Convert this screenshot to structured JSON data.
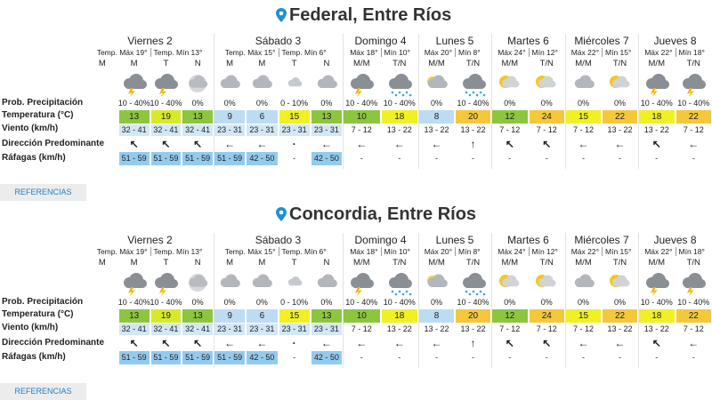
{
  "locations": [
    {
      "title": "Federal, Entre Ríos",
      "button": "REFERENCIAS",
      "row_labels": [
        "Prob. Precipitación",
        "Temperatura (°C)",
        "Viento (km/h)",
        "Dirección Predominante",
        "Ráfagas (km/h)"
      ],
      "days": [
        {
          "name": "Viernes 2",
          "max": "Temp. Máx 19°",
          "min": "Temp. Mín 13°",
          "periods": [
            "M",
            "M",
            "T",
            "N"
          ],
          "precipitation": [
            "10 - 40%",
            "10 - 40%",
            "0%"
          ],
          "temperature": [
            {
              "value": 13,
              "color": "#8cc63f"
            },
            {
              "value": 19,
              "color": "#d7ea2a"
            },
            {
              "value": 13,
              "color": "#8cc63f"
            }
          ],
          "wind": [
            "32 - 41",
            "32 - 41",
            "32 - 41"
          ],
          "direction": [
            "↖",
            "↖",
            "↖"
          ],
          "gusts": [
            "51 - 59",
            "51 - 59",
            "51 - 59"
          ]
        },
        {
          "name": "Sábado 3",
          "max": "Temp. Máx 15°",
          "min": "Temp. Mín 6°",
          "periods": [
            "M",
            "M",
            "T",
            "N"
          ],
          "precipitation": [
            "0%",
            "0%",
            "0 - 10%",
            "0%"
          ],
          "temperature": [
            {
              "value": 9,
              "color": "#bcdcf3"
            },
            {
              "value": 6,
              "color": "#bcdcf3"
            },
            {
              "value": 15,
              "color": "#f0f025"
            },
            {
              "value": 13,
              "color": "#8cc63f"
            }
          ],
          "wind": [
            "23 - 31",
            "23 - 31",
            "23 - 31",
            "23 - 31"
          ],
          "direction": [
            "←",
            "←",
            "·",
            "←"
          ],
          "gusts": [
            "51 - 59",
            "42 - 50",
            "-",
            "42 - 50"
          ]
        },
        {
          "name": "Domingo 4",
          "max": "Máx 18°",
          "min": "Mín 10°",
          "periods": [
            "M/M",
            "T/N"
          ],
          "precipitation": [
            "10 - 40%",
            "10 - 40%"
          ],
          "temperature": [
            {
              "value": 10,
              "color": "#8cc63f"
            },
            {
              "value": 18,
              "color": "#f0f025"
            }
          ],
          "wind": [
            "7 - 12",
            "13 - 22"
          ],
          "direction": [
            "←",
            "←"
          ],
          "gusts": [
            "-",
            "-"
          ]
        },
        {
          "name": "Lunes 5",
          "max": "Máx 20°",
          "min": "Mín 8°",
          "periods": [
            "M/M",
            "T/N"
          ],
          "precipitation": [
            "0%",
            "10 - 40%"
          ],
          "temperature": [
            {
              "value": 8,
              "color": "#bcdcf3"
            },
            {
              "value": 20,
              "color": "#f5c83c"
            }
          ],
          "wind": [
            "13 - 22",
            "13 - 22"
          ],
          "direction": [
            "←",
            "↑"
          ],
          "gusts": [
            "-",
            "-"
          ]
        },
        {
          "name": "Martes 6",
          "max": "Máx 24°",
          "min": "Mín 12°",
          "periods": [
            "M/M",
            "T/N"
          ],
          "precipitation": [
            "0%",
            "0%"
          ],
          "temperature": [
            {
              "value": 12,
              "color": "#8cc63f"
            },
            {
              "value": 24,
              "color": "#f5c83c"
            }
          ],
          "wind": [
            "7 - 12",
            "7 - 12"
          ],
          "direction": [
            "↖",
            "↖"
          ],
          "gusts": [
            "-",
            "-"
          ]
        },
        {
          "name": "Miércoles 7",
          "max": "Máx 22°",
          "min": "Mín 15°",
          "periods": [
            "M/M",
            "T/N"
          ],
          "precipitation": [
            "0%",
            "0%"
          ],
          "temperature": [
            {
              "value": 15,
              "color": "#f0f025"
            },
            {
              "value": 22,
              "color": "#f5c83c"
            }
          ],
          "wind": [
            "7 - 12",
            "13 - 22"
          ],
          "direction": [
            "←",
            "←"
          ],
          "gusts": [
            "-",
            "-"
          ]
        },
        {
          "name": "Jueves 8",
          "max": "Máx 22°",
          "min": "Mín 18°",
          "periods": [
            "M/M",
            "T/N"
          ],
          "precipitation": [
            "10 - 40%",
            "10 - 40%"
          ],
          "temperature": [
            {
              "value": 18,
              "color": "#f0f025"
            },
            {
              "value": 22,
              "color": "#f5c83c"
            }
          ],
          "wind": [
            "13 - 22",
            "7 - 12"
          ],
          "direction": [
            "↖",
            "←"
          ],
          "gusts": [
            "-",
            "-"
          ]
        }
      ]
    },
    {
      "title": "Concordia, Entre Ríos",
      "button": "REFERENCIAS",
      "row_labels": [
        "Prob. Precipitación",
        "Temperatura (°C)",
        "Viento (km/h)",
        "Dirección Predominante",
        "Ráfagas (km/h)"
      ],
      "days": [
        {
          "name": "Viernes 2",
          "max": "Temp. Máx 19°",
          "min": "Temp. Mín 13°",
          "periods": [
            "M",
            "M",
            "T",
            "N"
          ],
          "precipitation": [
            "10 - 40%",
            "10 - 40%",
            "0%"
          ],
          "temperature": [
            {
              "value": 13,
              "color": "#8cc63f"
            },
            {
              "value": 19,
              "color": "#d7ea2a"
            },
            {
              "value": 13,
              "color": "#8cc63f"
            }
          ],
          "wind": [
            "32 - 41",
            "32 - 41",
            "32 - 41"
          ],
          "direction": [
            "↖",
            "↖",
            "↖"
          ],
          "gusts": [
            "51 - 59",
            "51 - 59",
            "51 - 59"
          ]
        },
        {
          "name": "Sábado 3",
          "max": "Temp. Máx 15°",
          "min": "Temp. Mín 6°",
          "periods": [
            "M",
            "M",
            "T",
            "N"
          ],
          "precipitation": [
            "0%",
            "0%",
            "0 - 10%",
            "0%"
          ],
          "temperature": [
            {
              "value": 9,
              "color": "#bcdcf3"
            },
            {
              "value": 6,
              "color": "#bcdcf3"
            },
            {
              "value": 15,
              "color": "#f0f025"
            },
            {
              "value": 13,
              "color": "#8cc63f"
            }
          ],
          "wind": [
            "23 - 31",
            "23 - 31",
            "23 - 31",
            "23 - 31"
          ],
          "direction": [
            "←",
            "←",
            "·",
            "←"
          ],
          "gusts": [
            "51 - 59",
            "42 - 50",
            "-",
            "42 - 50"
          ]
        },
        {
          "name": "Domingo 4",
          "max": "Máx 18°",
          "min": "Mín 10°",
          "periods": [
            "M/M",
            "T/N"
          ],
          "precipitation": [
            "10 - 40%",
            "10 - 40%"
          ],
          "temperature": [
            {
              "value": 10,
              "color": "#8cc63f"
            },
            {
              "value": 18,
              "color": "#f0f025"
            }
          ],
          "wind": [
            "7 - 12",
            "13 - 22"
          ],
          "direction": [
            "←",
            "←"
          ],
          "gusts": [
            "-",
            "-"
          ]
        },
        {
          "name": "Lunes 5",
          "max": "Máx 20°",
          "min": "Mín 8°",
          "periods": [
            "M/M",
            "T/N"
          ],
          "precipitation": [
            "0%",
            "10 - 40%"
          ],
          "temperature": [
            {
              "value": 8,
              "color": "#bcdcf3"
            },
            {
              "value": 20,
              "color": "#f5c83c"
            }
          ],
          "wind": [
            "13 - 22",
            "13 - 22"
          ],
          "direction": [
            "←",
            "↑"
          ],
          "gusts": [
            "-",
            "-"
          ]
        },
        {
          "name": "Martes 6",
          "max": "Máx 24°",
          "min": "Mín 12°",
          "periods": [
            "M/M",
            "T/N"
          ],
          "precipitation": [
            "0%",
            "0%"
          ],
          "temperature": [
            {
              "value": 12,
              "color": "#8cc63f"
            },
            {
              "value": 24,
              "color": "#f5c83c"
            }
          ],
          "wind": [
            "7 - 12",
            "7 - 12"
          ],
          "direction": [
            "↖",
            "↖"
          ],
          "gusts": [
            "-",
            "-"
          ]
        },
        {
          "name": "Miércoles 7",
          "max": "Máx 22°",
          "min": "Mín 15°",
          "periods": [
            "M/M",
            "T/N"
          ],
          "precipitation": [
            "0%",
            "0%"
          ],
          "temperature": [
            {
              "value": 15,
              "color": "#f0f025"
            },
            {
              "value": 22,
              "color": "#f5c83c"
            }
          ],
          "wind": [
            "7 - 12",
            "13 - 22"
          ],
          "direction": [
            "←",
            "←"
          ],
          "gusts": [
            "-",
            "-"
          ]
        },
        {
          "name": "Jueves 8",
          "max": "Máx 22°",
          "min": "Mín 18°",
          "periods": [
            "M/M",
            "T/N"
          ],
          "precipitation": [
            "10 - 40%",
            "10 - 40%"
          ],
          "temperature": [
            {
              "value": 18,
              "color": "#f0f025"
            },
            {
              "value": 22,
              "color": "#f5c83c"
            }
          ],
          "wind": [
            "13 - 22",
            "7 - 12"
          ],
          "direction": [
            "↖",
            "←"
          ],
          "gusts": [
            "-",
            "-"
          ]
        }
      ]
    }
  ]
}
